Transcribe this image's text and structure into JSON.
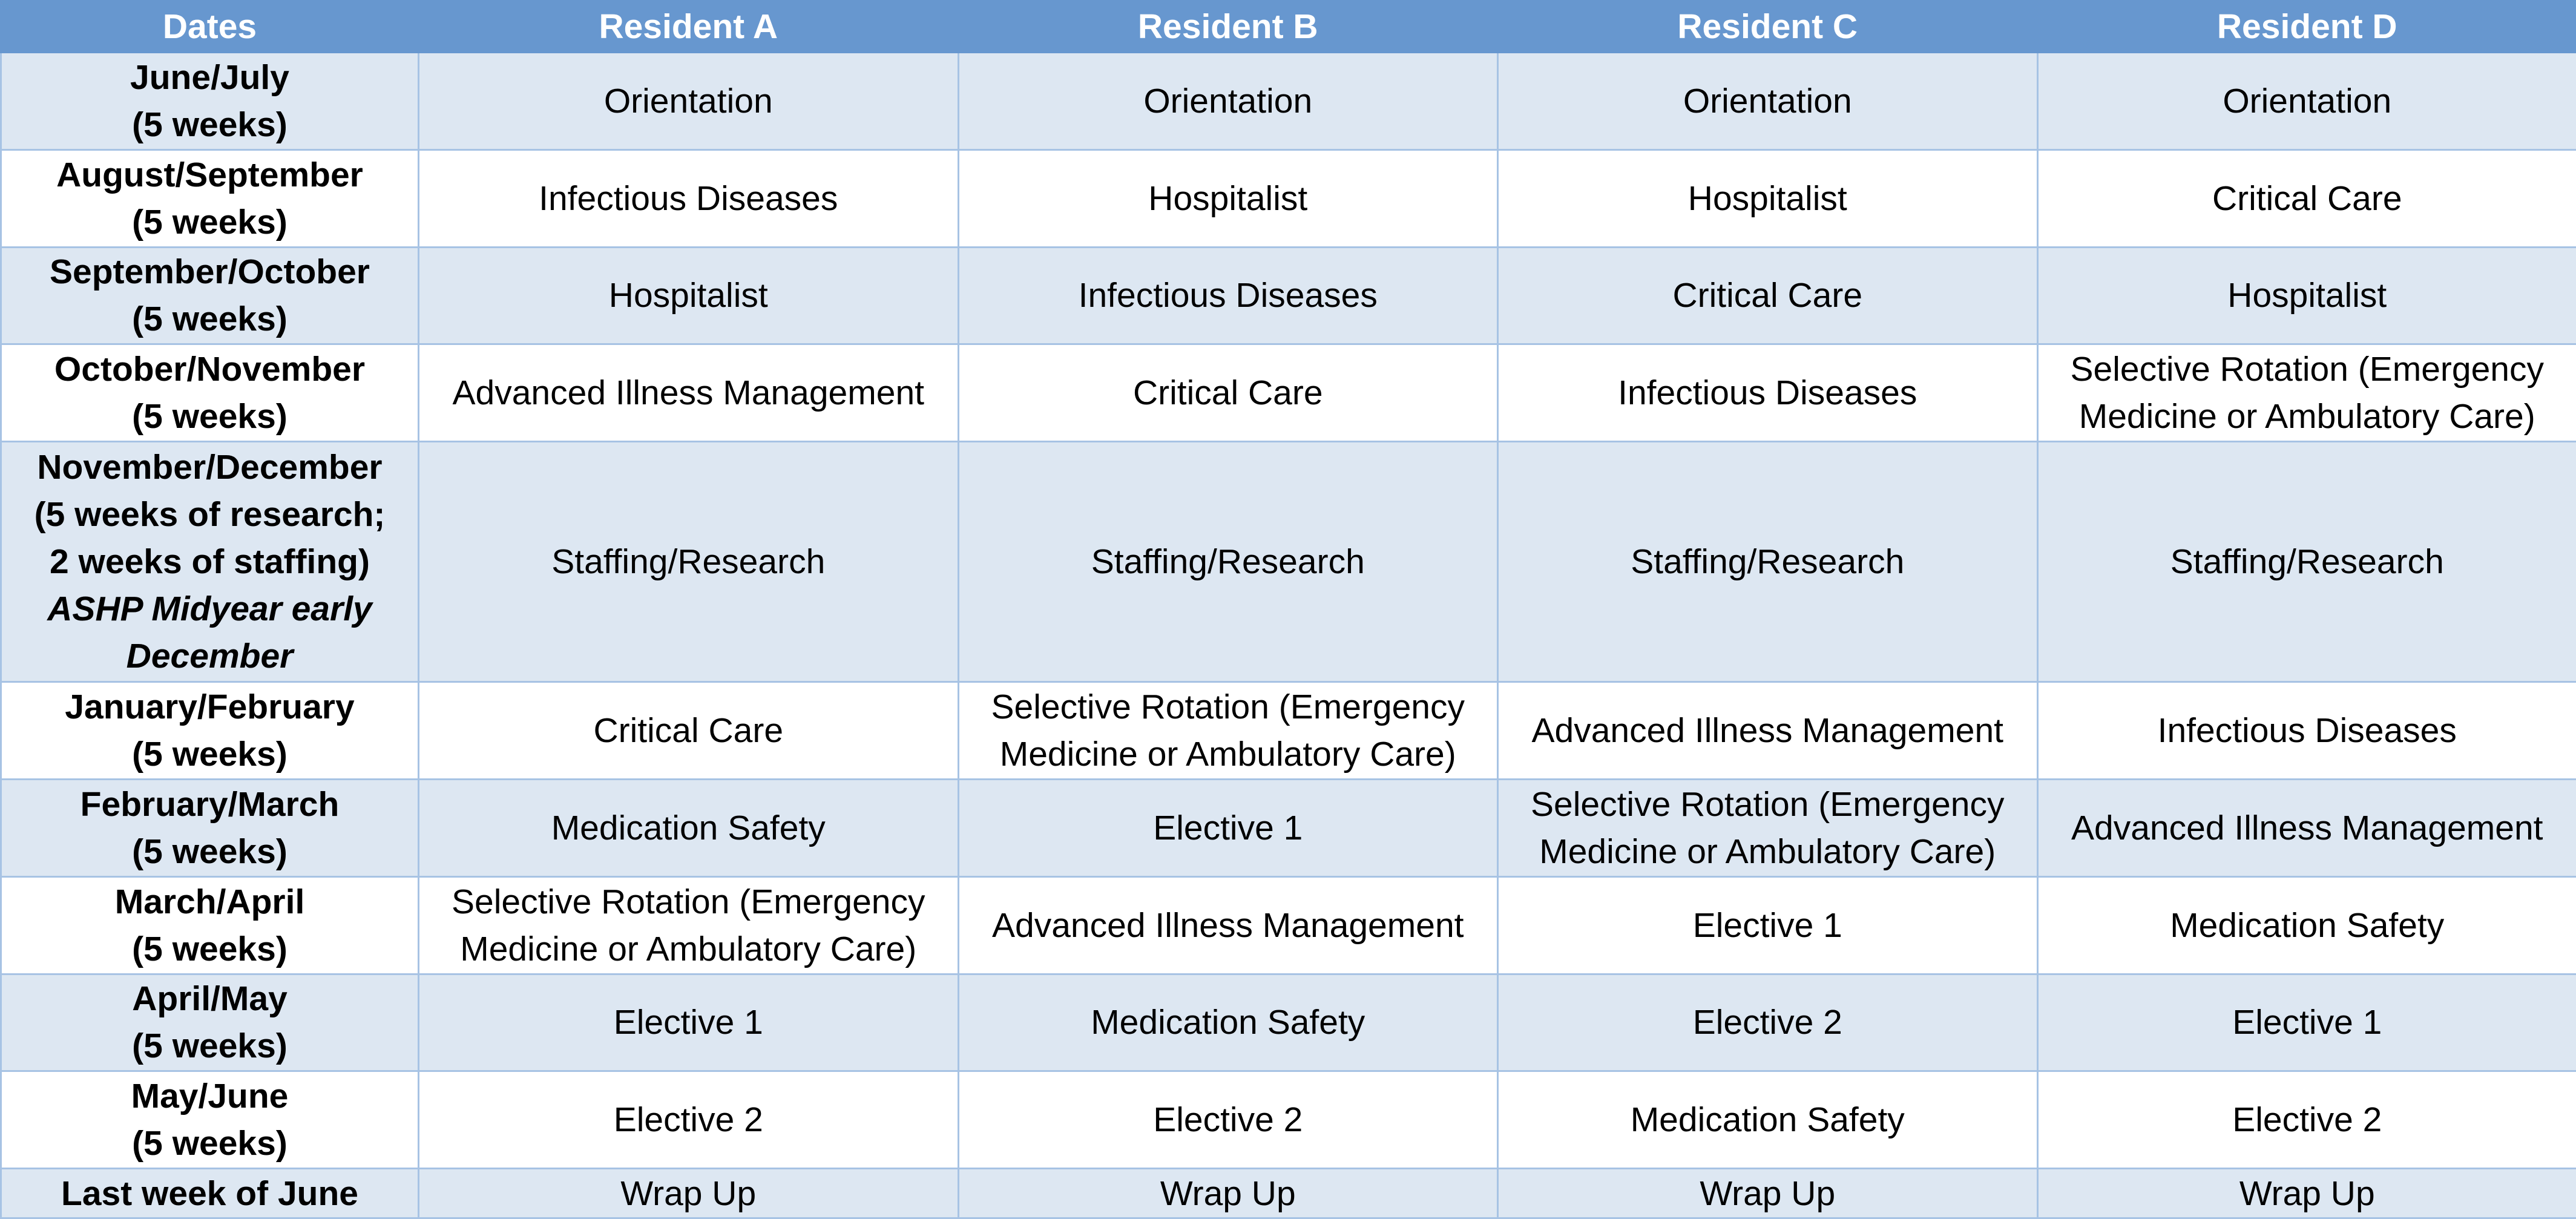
{
  "table": {
    "headers": [
      "Dates",
      "Resident A",
      "Resident B",
      "Resident C",
      "Resident D"
    ],
    "colors": {
      "header_bg": "#6797cf",
      "header_text": "#ffffff",
      "band_row": "#dde7f2",
      "plain_row": "#ffffff",
      "border": "#a7c3e4"
    },
    "rows": [
      {
        "dates": [
          "June/July",
          "(5 weeks)"
        ],
        "cells": [
          "Orientation",
          "Orientation",
          "Orientation",
          "Orientation"
        ]
      },
      {
        "dates": [
          "August/September",
          "(5 weeks)"
        ],
        "cells": [
          "Infectious Diseases",
          "Hospitalist",
          "Hospitalist",
          "Critical Care"
        ]
      },
      {
        "dates": [
          "September/October",
          "(5 weeks)"
        ],
        "cells": [
          "Hospitalist",
          "Infectious Diseases",
          "Critical Care",
          "Hospitalist"
        ]
      },
      {
        "dates": [
          "October/November",
          "(5 weeks)"
        ],
        "cells": [
          "Advanced Illness Management",
          "Critical Care",
          "Infectious Diseases",
          "Selective Rotation (Emergency Medicine or Ambulatory Care)"
        ]
      },
      {
        "dates": [
          "November/December",
          "(5 weeks of research;",
          "2 weeks of staffing)"
        ],
        "dates_note": "ASHP Midyear early December",
        "cells": [
          "Staffing/Research",
          "Staffing/Research",
          "Staffing/Research",
          "Staffing/Research"
        ]
      },
      {
        "dates": [
          "January/February",
          "(5 weeks)"
        ],
        "cells": [
          "Critical Care",
          "Selective Rotation (Emergency Medicine or Ambulatory Care)",
          "Advanced Illness Management",
          "Infectious Diseases"
        ]
      },
      {
        "dates": [
          "February/March",
          "(5 weeks)"
        ],
        "cells": [
          "Medication Safety",
          "Elective 1",
          "Selective Rotation (Emergency Medicine or Ambulatory Care)",
          "Advanced Illness Management"
        ]
      },
      {
        "dates": [
          "March/April",
          "(5 weeks)"
        ],
        "cells": [
          "Selective Rotation (Emergency Medicine or Ambulatory Care)",
          "Advanced Illness Management",
          "Elective 1",
          "Medication Safety"
        ]
      },
      {
        "dates": [
          "April/May",
          "(5 weeks)"
        ],
        "cells": [
          "Elective 1",
          "Medication Safety",
          "Elective 2",
          "Elective 1"
        ]
      },
      {
        "dates": [
          "May/June",
          "(5 weeks)"
        ],
        "cells": [
          "Elective 2",
          "Elective 2",
          "Medication Safety",
          "Elective 2"
        ]
      },
      {
        "dates": [
          "Last week of June"
        ],
        "cells": [
          "Wrap Up",
          "Wrap Up",
          "Wrap Up",
          "Wrap Up"
        ]
      }
    ]
  }
}
